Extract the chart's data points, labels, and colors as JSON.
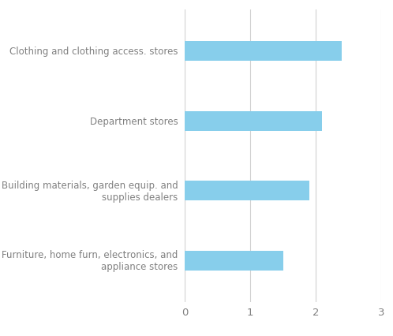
{
  "categories": [
    "Furniture, home furn, electronics, and\nappliance stores",
    "Building materials, garden equip. and\nsupplies dealers",
    "Department stores",
    "Clothing and clothing access. stores"
  ],
  "values": [
    1.5,
    1.9,
    2.1,
    2.4
  ],
  "bar_color": "#87CEEB",
  "xlim": [
    0,
    3
  ],
  "xticks": [
    0,
    1,
    2,
    3
  ],
  "background_color": "#ffffff",
  "grid_color": "#d0d0d0",
  "label_color": "#808080",
  "bar_height": 0.28,
  "label_fontsize": 8.5,
  "tick_fontsize": 9.5
}
